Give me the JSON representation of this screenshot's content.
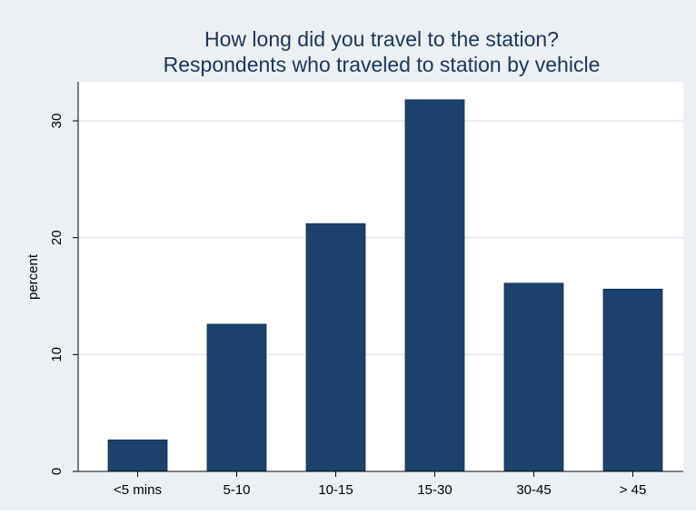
{
  "chart_data": {
    "type": "bar",
    "title": "How long did you travel to the station?",
    "subtitle": "Respondents who traveled to station by vehicle",
    "xlabel": "",
    "ylabel": "percent",
    "categories": [
      "<5 mins",
      "5-10",
      "10-15",
      "15-30",
      "30-45",
      "> 45"
    ],
    "values": [
      2.7,
      12.6,
      21.2,
      31.8,
      16.1,
      15.6
    ],
    "ylim": [
      0,
      33.5
    ],
    "yticks": [
      0,
      10,
      20,
      30
    ],
    "ytick_labels": [
      "0",
      "10",
      "20",
      "30"
    ],
    "grid": true,
    "legend": "none"
  },
  "colors": {
    "outer_background": "#eaf0f3",
    "plot_background": "#ffffff",
    "bar": "#1c416a",
    "title": "#1c3557",
    "gridline": "#e3eaee",
    "axis": "#000000"
  }
}
